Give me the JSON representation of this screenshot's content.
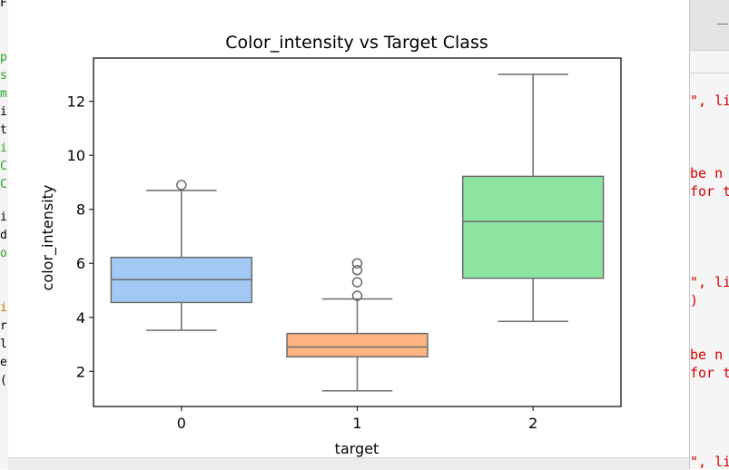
{
  "editor_left": {
    "chars": [
      {
        "text": "F",
        "color": "#000000"
      },
      {
        "text": "p",
        "color": "#2aa12a"
      },
      {
        "text": "s",
        "color": "#2aa12a"
      },
      {
        "text": "m",
        "color": "#2aa12a"
      },
      {
        "text": "i",
        "color": "#000000"
      },
      {
        "text": "t",
        "color": "#000000"
      },
      {
        "text": "i",
        "color": "#2aa12a"
      },
      {
        "text": "C",
        "color": "#2aa12a"
      },
      {
        "text": "C",
        "color": "#2aa12a"
      },
      {
        "text": "i",
        "color": "#000000"
      },
      {
        "text": "d",
        "color": "#000000"
      },
      {
        "text": "o",
        "color": "#2aa12a"
      },
      {
        "text": "i",
        "color": "#d96b00"
      },
      {
        "text": "r",
        "color": "#000000"
      },
      {
        "text": "l",
        "color": "#000000"
      },
      {
        "text": "e",
        "color": "#000000"
      },
      {
        "text": "(",
        "color": "#000000"
      }
    ]
  },
  "editor_right": {
    "lines": [
      "\", li",
      " be n",
      "for t",
      "\", li",
      ")",
      " be n",
      "for t",
      "\", li"
    ]
  },
  "chart_data": {
    "type": "box",
    "title": "Color_intensity vs Target Class",
    "xlabel": "target",
    "ylabel": "color_intensity",
    "categories": [
      "0",
      "1",
      "2"
    ],
    "ylim": [
      0.7,
      13.6
    ],
    "yticks": [
      2,
      4,
      6,
      8,
      10,
      12
    ],
    "grid": false,
    "boxes": [
      {
        "category": "0",
        "whisker_low": 3.52,
        "q1": 4.55,
        "median": 5.4,
        "q3": 6.22,
        "whisker_high": 8.7,
        "outliers": [
          8.9
        ],
        "color": "#a1c9f4"
      },
      {
        "category": "1",
        "whisker_low": 1.28,
        "q1": 2.54,
        "median": 2.9,
        "q3": 3.4,
        "whisker_high": 4.68,
        "outliers": [
          4.8,
          5.3,
          5.75,
          6.0
        ],
        "color": "#ffb482"
      },
      {
        "category": "2",
        "whisker_low": 3.85,
        "q1": 5.45,
        "median": 7.55,
        "q3": 9.22,
        "whisker_high": 13.0,
        "outliers": [],
        "color": "#8de5a1"
      }
    ]
  }
}
